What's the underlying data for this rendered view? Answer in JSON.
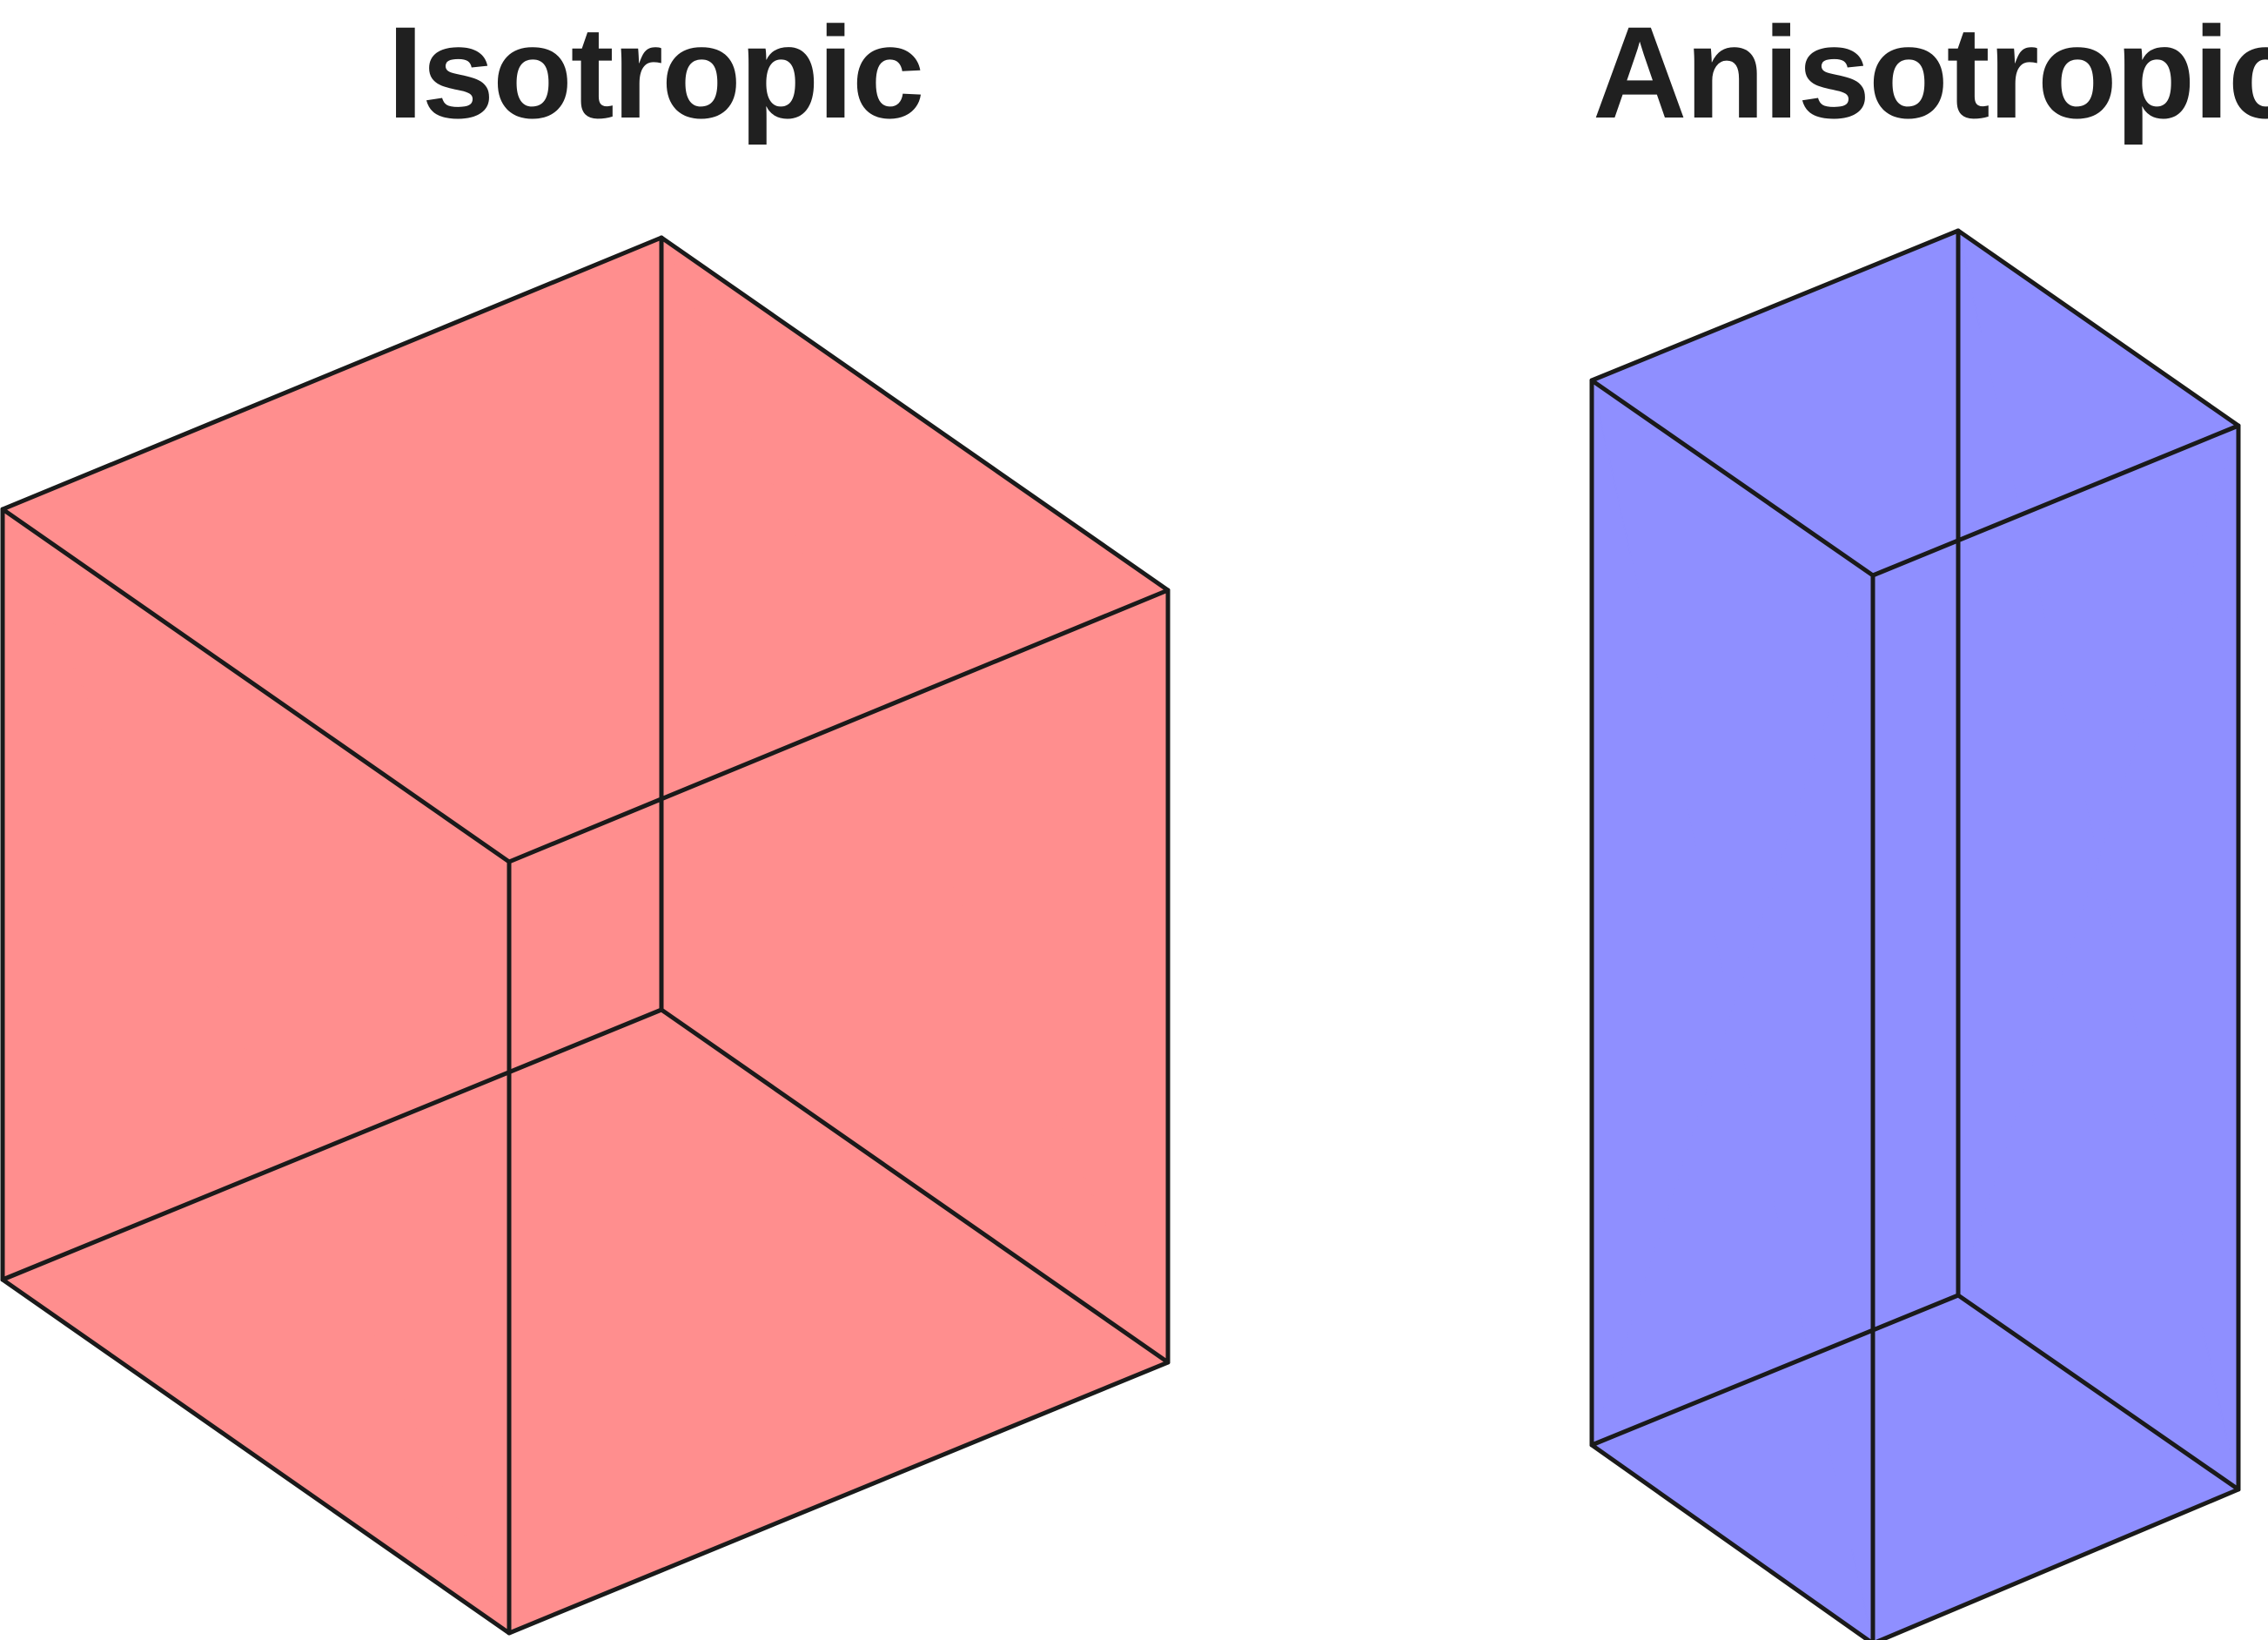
{
  "titles": {
    "left": "Isotropic",
    "right": "Anisotropic"
  },
  "colors": {
    "isotropic_fill": "#ff8e8e",
    "anisotropic_fill": "#8f8fff",
    "edge": "#1a1a1a",
    "title_text": "#202020"
  }
}
